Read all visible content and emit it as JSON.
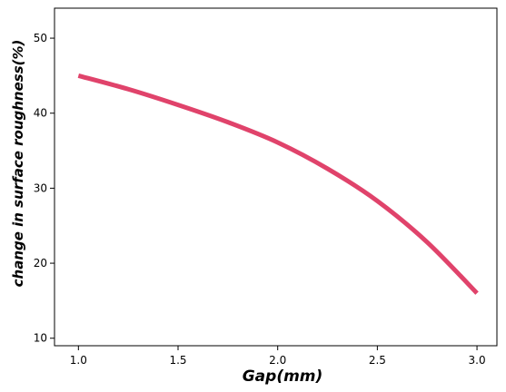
{
  "chart_data": {
    "type": "line",
    "title": "",
    "xlabel": "Gap(mm)",
    "ylabel": "change in surface roughness(%)",
    "xlim": [
      0.88,
      3.1
    ],
    "ylim": [
      9,
      54
    ],
    "x_ticks": [
      1.0,
      1.5,
      2.0,
      2.5,
      3.0
    ],
    "x_tick_labels": [
      "1.0",
      "1.5",
      "2.0",
      "2.5",
      "3.0"
    ],
    "y_ticks": [
      10,
      20,
      30,
      40,
      50
    ],
    "y_tick_labels": [
      "10",
      "20",
      "30",
      "40",
      "50"
    ],
    "grid": false,
    "series": [
      {
        "color": "#e0436b",
        "x": [
          1.0,
          1.25,
          1.5,
          1.75,
          2.0,
          2.25,
          2.5,
          2.75,
          3.0
        ],
        "y": [
          45.0,
          43.2,
          41.1,
          38.8,
          36.1,
          32.6,
          28.3,
          22.8,
          16.0
        ]
      }
    ]
  }
}
